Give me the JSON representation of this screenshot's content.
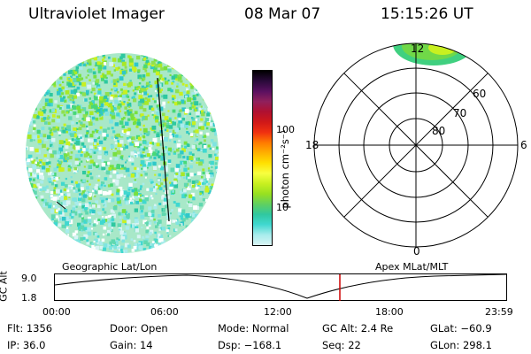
{
  "header": {
    "instrument": "Ultraviolet Imager",
    "date": "08 Mar 07",
    "time": "15:15:26 UT"
  },
  "colorbar": {
    "unit_label": "photon cm⁻²s⁻¹",
    "ticks": [
      "100",
      "10"
    ],
    "colors": [
      "#000000",
      "#2a0a3a",
      "#5a1060",
      "#90205c",
      "#b01030",
      "#d01818",
      "#f03010",
      "#ff7a00",
      "#ffb000",
      "#ffe000",
      "#f8ff40",
      "#c8f020",
      "#98e020",
      "#60d060",
      "#30c8a0",
      "#40d8d0",
      "#a8ecec",
      "#d8f4f4"
    ]
  },
  "polar_plot": {
    "mlt_labels": {
      "top": "12",
      "left": "18",
      "right": "6",
      "bottom": "0"
    },
    "lat_labels": [
      "60",
      "70",
      "80"
    ]
  },
  "timeline": {
    "left_label": "Geographic Lat/Lon",
    "right_label": "Apex MLat/MLT",
    "axis_title": "GC Alt",
    "y_ticks": [
      "9.0",
      "1.8"
    ],
    "x_ticks": [
      "00:00",
      "06:00",
      "12:00",
      "18:00",
      "23:59"
    ],
    "marker_color": "#cc0000"
  },
  "info": {
    "flt": "Flt: 1356",
    "ip": "IP: 36.0",
    "door": "Door: Open",
    "gain": "Gain: 14",
    "mode": "Mode: Normal",
    "dsp": "Dsp: −168.1",
    "gcalt": "GC Alt: 2.4 Re",
    "seq": "Seq: 22",
    "glat": "GLat: −60.9",
    "glon": "GLon: 298.1"
  }
}
